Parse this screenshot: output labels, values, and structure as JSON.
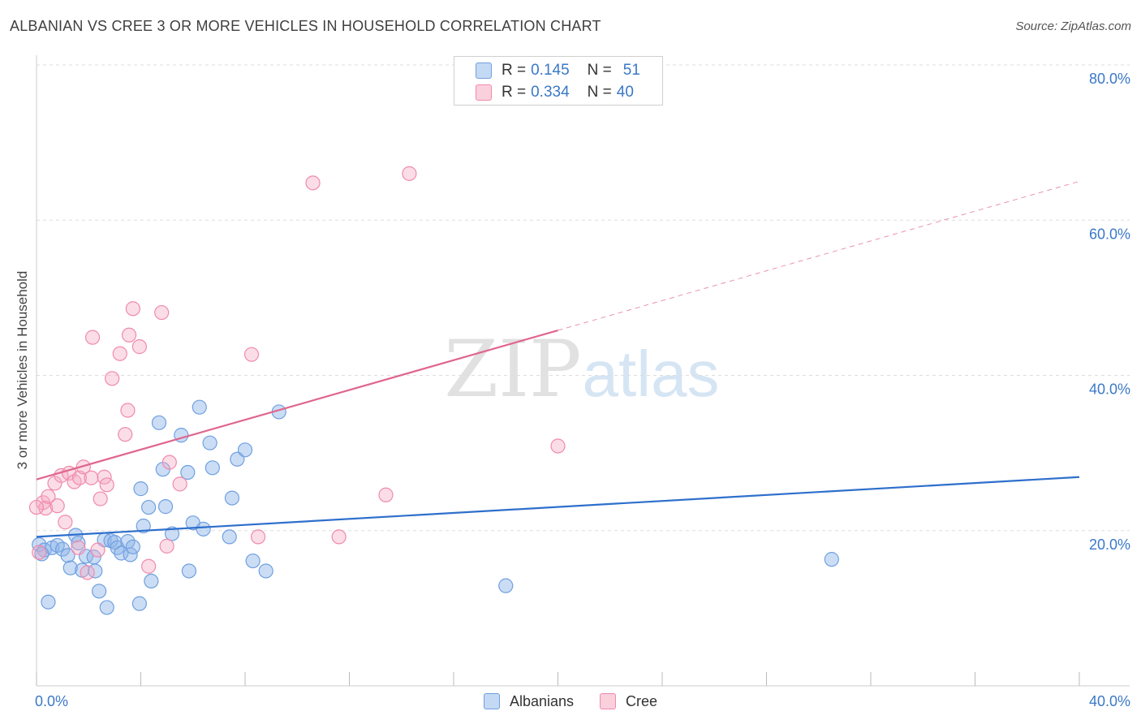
{
  "title": "ALBANIAN VS CREE 3 OR MORE VEHICLES IN HOUSEHOLD CORRELATION CHART",
  "source": "Source: ZipAtlas.com",
  "watermark": {
    "zip": "ZIP",
    "atlas": "atlas"
  },
  "legend_top": [
    {
      "r_label": "R =",
      "r_value": "0.145",
      "n_label": "N =",
      "n_value": "51",
      "color": "#6fa0e0"
    },
    {
      "r_label": "R =",
      "r_value": "0.334",
      "n_label": "N =",
      "n_value": "40",
      "color": "#f08aab"
    }
  ],
  "chart_data": {
    "type": "scatter",
    "title": "ALBANIAN VS CREE 3 OR MORE VEHICLES IN HOUSEHOLD CORRELATION CHART",
    "xlabel": "",
    "ylabel": "3 or more Vehicles in Household",
    "xlim": [
      0,
      40
    ],
    "ylim": [
      0,
      80
    ],
    "x_tick_labels": [
      {
        "value": 0,
        "label": "0.0%"
      },
      {
        "value": 40,
        "label": "40.0%"
      }
    ],
    "y_tick_labels": [
      {
        "value": 20,
        "label": "20.0%"
      },
      {
        "value": 40,
        "label": "40.0%"
      },
      {
        "value": 60,
        "label": "60.0%"
      },
      {
        "value": 80,
        "label": "80.0%"
      }
    ],
    "grid": true,
    "legend_position": "bottom",
    "series": [
      {
        "name": "Albanians",
        "color": "#6fa0e0",
        "line_color": "#2e6fcc",
        "trend": {
          "x0": 0,
          "y0": 19.2,
          "x1": 40,
          "y1": 26.9,
          "dashed_from": null
        },
        "points": [
          [
            0.1,
            18.2
          ],
          [
            0.3,
            17.5
          ],
          [
            0.45,
            10.8
          ],
          [
            0.6,
            17.8
          ],
          [
            0.8,
            18.1
          ],
          [
            1.0,
            17.6
          ],
          [
            1.2,
            16.8
          ],
          [
            1.3,
            15.2
          ],
          [
            1.5,
            19.4
          ],
          [
            1.6,
            18.4
          ],
          [
            1.75,
            14.9
          ],
          [
            1.9,
            16.7
          ],
          [
            2.2,
            16.6
          ],
          [
            2.25,
            14.8
          ],
          [
            2.4,
            12.2
          ],
          [
            2.6,
            18.8
          ],
          [
            2.7,
            10.1
          ],
          [
            2.85,
            18.7
          ],
          [
            3.0,
            18.5
          ],
          [
            3.1,
            17.8
          ],
          [
            3.25,
            17.1
          ],
          [
            3.5,
            18.6
          ],
          [
            3.6,
            16.9
          ],
          [
            3.7,
            17.9
          ],
          [
            3.95,
            10.6
          ],
          [
            4.0,
            25.4
          ],
          [
            4.1,
            20.6
          ],
          [
            4.3,
            23.0
          ],
          [
            4.4,
            13.5
          ],
          [
            4.7,
            33.9
          ],
          [
            4.85,
            27.9
          ],
          [
            4.95,
            23.1
          ],
          [
            5.2,
            19.6
          ],
          [
            5.55,
            32.3
          ],
          [
            5.8,
            27.5
          ],
          [
            5.85,
            14.8
          ],
          [
            6.0,
            21.0
          ],
          [
            6.25,
            35.9
          ],
          [
            6.4,
            20.2
          ],
          [
            6.65,
            31.3
          ],
          [
            6.75,
            28.1
          ],
          [
            7.4,
            19.2
          ],
          [
            7.5,
            24.2
          ],
          [
            7.7,
            29.2
          ],
          [
            8.0,
            30.4
          ],
          [
            8.3,
            16.1
          ],
          [
            8.8,
            14.8
          ],
          [
            9.3,
            35.3
          ],
          [
            18.0,
            12.9
          ],
          [
            30.5,
            16.3
          ],
          [
            0.2,
            17.0
          ]
        ]
      },
      {
        "name": "Cree",
        "color": "#f08aab",
        "line_color": "#e0668e",
        "trend": {
          "x0": 0,
          "y0": 26.6,
          "x1": 40,
          "y1": 65.0,
          "dashed_from": 20.0
        },
        "points": [
          [
            0.1,
            17.2
          ],
          [
            0.25,
            23.6
          ],
          [
            0.35,
            22.9
          ],
          [
            0.45,
            24.4
          ],
          [
            0.7,
            26.1
          ],
          [
            0.8,
            23.2
          ],
          [
            0.95,
            27.1
          ],
          [
            1.1,
            21.1
          ],
          [
            1.25,
            27.4
          ],
          [
            1.45,
            26.3
          ],
          [
            1.6,
            17.8
          ],
          [
            1.65,
            26.8
          ],
          [
            1.8,
            28.2
          ],
          [
            1.95,
            14.6
          ],
          [
            2.1,
            26.8
          ],
          [
            2.15,
            44.9
          ],
          [
            2.35,
            17.5
          ],
          [
            2.45,
            24.1
          ],
          [
            2.6,
            26.9
          ],
          [
            2.7,
            25.9
          ],
          [
            2.9,
            39.6
          ],
          [
            3.2,
            42.8
          ],
          [
            3.4,
            32.4
          ],
          [
            3.5,
            35.5
          ],
          [
            3.55,
            45.2
          ],
          [
            3.7,
            48.6
          ],
          [
            3.95,
            43.7
          ],
          [
            4.3,
            15.4
          ],
          [
            4.8,
            48.1
          ],
          [
            5.0,
            18.0
          ],
          [
            5.1,
            28.8
          ],
          [
            5.5,
            26.0
          ],
          [
            8.25,
            42.7
          ],
          [
            8.5,
            19.2
          ],
          [
            10.6,
            64.8
          ],
          [
            11.6,
            19.2
          ],
          [
            13.4,
            24.6
          ],
          [
            14.3,
            66.0
          ],
          [
            20.0,
            30.9
          ],
          [
            0.0,
            23.0
          ]
        ]
      }
    ]
  }
}
